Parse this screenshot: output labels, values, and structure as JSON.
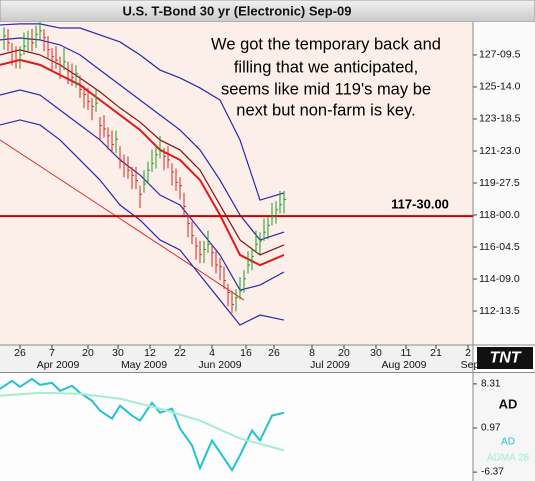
{
  "chart_data": [
    {
      "type": "ohlc",
      "title": "U.S. T-Bond 30 yr (Electronic) Sep-09",
      "annotation_lines": [
        "We got the temporary back and",
        "filling that we anticipated,",
        "seems like mid 119's may be",
        "next but non-farm is key."
      ],
      "x": [
        -4,
        -3,
        -2,
        -1,
        0,
        1,
        2,
        3,
        4,
        5,
        6,
        7,
        8,
        9,
        10,
        11,
        12,
        13,
        14,
        15,
        16,
        17,
        18,
        19,
        20,
        21,
        22,
        23,
        24,
        25,
        26,
        27,
        28,
        29,
        30,
        31,
        32,
        33,
        34,
        35,
        36,
        37,
        38,
        39,
        40,
        41,
        42,
        43,
        44,
        45,
        46,
        47,
        48,
        49,
        50,
        51,
        52,
        53,
        54,
        55,
        56,
        57,
        58,
        59,
        60,
        61,
        62,
        63,
        64,
        65,
        66
      ],
      "high": [
        128.9,
        128.8,
        128.0,
        127.8,
        127.8,
        128.6,
        128.7,
        128.8,
        129.0,
        129.5,
        128.8,
        128.4,
        127.7,
        127.8,
        127.2,
        127.7,
        126.9,
        126.8,
        126.7,
        126.1,
        125.5,
        125.4,
        124.8,
        125.3,
        123.7,
        123.8,
        123.1,
        122.9,
        122.9,
        122.0,
        121.5,
        121.4,
        120.8,
        120.8,
        119.7,
        120.6,
        121.1,
        121.8,
        122.0,
        122.6,
        121.9,
        122.0,
        121.0,
        120.7,
        120.2,
        119.3,
        118.0,
        117.6,
        116.7,
        116.5,
        116.5,
        117.1,
        116.3,
        115.9,
        115.5,
        115.0,
        114.0,
        113.6,
        113.7,
        114.4,
        114.8,
        115.9,
        116.1,
        117.1,
        117.0,
        117.8,
        117.9,
        118.7,
        118.8,
        119.4,
        119.4
      ],
      "low": [
        127.6,
        127.5,
        126.7,
        126.5,
        126.5,
        127.3,
        127.4,
        127.5,
        127.7,
        128.2,
        127.5,
        127.1,
        126.4,
        126.5,
        125.9,
        126.4,
        125.6,
        125.5,
        125.4,
        124.8,
        124.2,
        124.1,
        123.5,
        124.0,
        122.4,
        122.5,
        121.8,
        121.6,
        121.6,
        120.7,
        120.2,
        120.1,
        119.5,
        119.5,
        118.4,
        119.3,
        119.8,
        120.5,
        120.7,
        121.3,
        120.6,
        120.7,
        119.7,
        119.4,
        118.9,
        118.0,
        116.7,
        116.3,
        115.4,
        115.2,
        115.2,
        115.8,
        115.0,
        114.6,
        114.2,
        113.7,
        112.7,
        112.3,
        112.4,
        113.1,
        113.5,
        114.6,
        114.8,
        115.8,
        115.7,
        116.5,
        116.6,
        117.4,
        117.5,
        118.1,
        118.1
      ],
      "close": [
        128.4,
        128.0,
        127.5,
        127.0,
        127.3,
        127.8,
        128.2,
        128.0,
        128.5,
        128.7,
        128.3,
        127.6,
        127.2,
        127.0,
        126.7,
        126.9,
        126.4,
        126.0,
        126.2,
        125.3,
        125.0,
        124.6,
        124.3,
        124.5,
        123.2,
        123.0,
        122.6,
        122.1,
        122.4,
        121.2,
        121.0,
        120.6,
        120.3,
        120.0,
        119.2,
        119.8,
        120.6,
        121.0,
        121.5,
        121.8,
        121.4,
        121.2,
        120.5,
        119.9,
        119.7,
        118.5,
        117.5,
        116.8,
        116.2,
        115.7,
        116.0,
        116.3,
        115.8,
        115.1,
        115.0,
        114.2,
        113.5,
        112.8,
        113.2,
        113.6,
        114.3,
        115.1,
        115.6,
        116.3,
        116.5,
        117.0,
        117.4,
        117.9,
        118.3,
        118.6,
        118.9
      ],
      "up_color": "#1e9a28",
      "down_color": "#d42828",
      "band_x": [
        -5,
        0,
        5,
        10,
        15,
        20,
        25,
        30,
        35,
        40,
        45,
        50,
        55,
        60,
        66
      ],
      "bands": [
        {
          "color": "#2a2aa8",
          "values": [
            129.04,
            129.1,
            129.1,
            128.86,
            128.86,
            128.46,
            128.05,
            127.3,
            126.42,
            125.96,
            125.38,
            124.68,
            122.36,
            118.87,
            119.28
          ]
        },
        {
          "color": "#2a2aa8",
          "values": [
            128.17,
            128.28,
            128.17,
            127.88,
            127.3,
            126.42,
            125.55,
            124.68,
            123.81,
            122.94,
            121.78,
            120.03,
            118.0,
            116.55,
            117.01
          ]
        },
        {
          "color": "#8a1010",
          "values": [
            127.3,
            127.59,
            127.3,
            126.72,
            125.96,
            125.15,
            124.22,
            123.4,
            122.36,
            121.78,
            120.61,
            118.58,
            116.55,
            115.68,
            116.26
          ]
        },
        {
          "color": "#e01818",
          "values": [
            126.72,
            127.01,
            126.72,
            126.13,
            125.55,
            124.68,
            123.81,
            122.94,
            121.78,
            121.2,
            120.03,
            118.0,
            115.68,
            115.09,
            115.68
          ]
        },
        {
          "color": "#2a2aa8",
          "values": [
            124.97,
            125.26,
            124.97,
            124.1,
            123.23,
            122.36,
            121.2,
            120.32,
            119.16,
            118.58,
            117.13,
            115.68,
            113.64,
            113.93,
            114.69
          ]
        },
        {
          "color": "#2a2aa8",
          "values": [
            123.23,
            123.52,
            123.23,
            122.36,
            121.2,
            120.03,
            118.58,
            117.71,
            116.55,
            115.97,
            114.51,
            113.06,
            111.61,
            112.19,
            111.9
          ]
        }
      ],
      "trendline": {
        "color": "#d83030",
        "x": [
          -5,
          56
        ],
        "values": [
          122.36,
          113.06
        ]
      },
      "hline": {
        "value": 117.9375,
        "label": "117-30.00",
        "color": "#c80000"
      },
      "xlim": [
        -5,
        113.25
      ],
      "ylim": [
        110.45,
        129.21
      ],
      "yticks": [
        {
          "value": 127.296875,
          "label": "127-09.5"
        },
        {
          "value": 125.4375,
          "label": "125-14.0"
        },
        {
          "value": 123.578125,
          "label": "123-18.5"
        },
        {
          "value": 121.71875,
          "label": "121-23.0"
        },
        {
          "value": 119.859375,
          "label": "119-27.5"
        },
        {
          "value": 118,
          "label": "118-00.0"
        },
        {
          "value": 116.140625,
          "label": "116-04.5"
        },
        {
          "value": 114.28125,
          "label": "114-09.0"
        },
        {
          "value": 112.421875,
          "label": "112-13.5"
        }
      ],
      "xticks": [
        {
          "value": 0,
          "label": "26"
        },
        {
          "value": 8,
          "label": "7"
        },
        {
          "value": 17,
          "label": "20"
        },
        {
          "value": 24.5,
          "label": "30"
        },
        {
          "value": 32.5,
          "label": "12"
        },
        {
          "value": 40,
          "label": "22"
        },
        {
          "value": 48,
          "label": "4"
        },
        {
          "value": 56.5,
          "label": "16"
        },
        {
          "value": 63.5,
          "label": "26"
        },
        {
          "value": 73,
          "label": "8"
        },
        {
          "value": 81,
          "label": "20"
        },
        {
          "value": 89,
          "label": "30"
        },
        {
          "value": 96.5,
          "label": "11"
        },
        {
          "value": 104,
          "label": "21"
        },
        {
          "value": 112,
          "label": "2"
        }
      ],
      "month_labels": [
        {
          "value": 9.5,
          "label": "Apr 2009"
        },
        {
          "value": 31,
          "label": "May 2009"
        },
        {
          "value": 50,
          "label": "Jun 2009"
        },
        {
          "value": 77.5,
          "label": "Jul 2009"
        },
        {
          "value": 96,
          "label": "Aug 2009"
        },
        {
          "value": 112.5,
          "label": "Sep"
        }
      ],
      "logo": "TNT"
    },
    {
      "type": "line",
      "title": "AD",
      "series": [
        {
          "name": "AD",
          "color": "#22c2d2",
          "x": [
            -5,
            -2,
            0,
            3,
            5,
            8,
            10,
            13,
            15,
            18,
            20,
            23,
            25,
            28,
            30,
            33,
            35,
            38,
            40,
            43,
            45,
            48,
            50,
            53,
            55,
            58,
            60,
            63,
            66
          ],
          "values": [
            7.49,
            8.81,
            7.82,
            9.13,
            8.15,
            8.48,
            7.16,
            7.98,
            6.83,
            5.5,
            3.85,
            2.54,
            4.68,
            3.03,
            2.21,
            5.17,
            3.52,
            4.19,
            0.88,
            -1.92,
            -5.72,
            -1.1,
            -3.08,
            -6.05,
            -3.57,
            0.55,
            -1.1,
            3.03,
            3.52
          ]
        },
        {
          "name": "ADMA 28",
          "color": "#a6eccf",
          "x": [
            -5,
            5,
            15,
            25,
            35,
            45,
            55,
            66
          ],
          "values": [
            6.33,
            6.83,
            6.66,
            5.84,
            4.19,
            2.21,
            -0.77,
            -2.75
          ]
        }
      ],
      "xlim": [
        -5,
        113.25
      ],
      "ylim": [
        -7.85,
        10.12
      ],
      "yticks": [
        8.31,
        0.97,
        -6.37
      ]
    }
  ]
}
